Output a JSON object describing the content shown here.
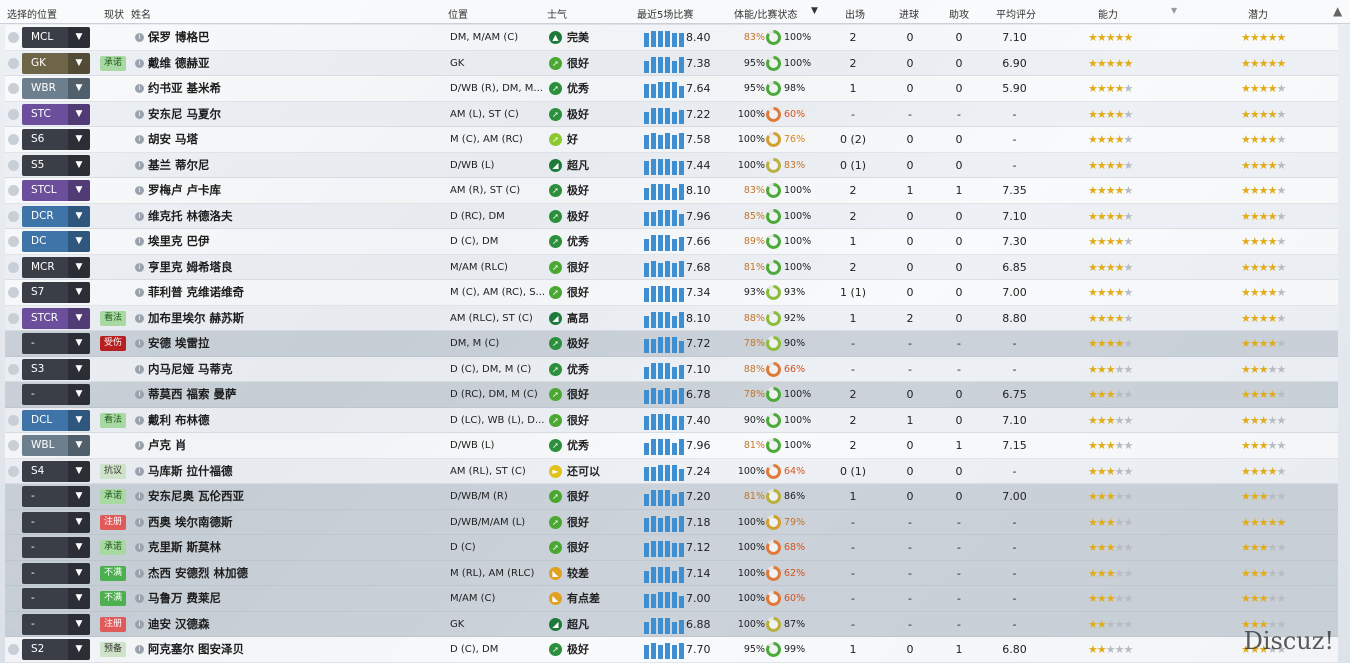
{
  "header": {
    "select_pos": "选择的位置",
    "status": "现状",
    "name": "姓名",
    "position": "位置",
    "morale": "士气",
    "last5": "最近5场比赛",
    "condition": "体能/比赛状态",
    "apps": "出场",
    "goals": "进球",
    "assists": "助攻",
    "avg_rating": "平均评分",
    "ability": "能力",
    "potential": "潜力"
  },
  "watermark": "Discuz!",
  "rows": [
    {
      "pos": "MCL",
      "pos_color": "#3a3f47",
      "status": "",
      "info": "i",
      "name": "保罗 博格巴",
      "position": "DM, M/AM (C)",
      "morale": "完美",
      "morale_color": "#1e7a3a",
      "morale_icon": "▲",
      "avg": "8.40",
      "cond": "83%",
      "cond_color": "#c0762a",
      "sharp": "100%",
      "sharp_color": "#222",
      "ring": "#4caa3a",
      "apps": "2",
      "goals": "0",
      "assists": "0",
      "rating": "7.10",
      "ab": 4.5,
      "pot": 4.5,
      "dim": false
    },
    {
      "pos": "GK",
      "pos_color": "#6e6447",
      "status": "承诺",
      "status_bg": "#a9d9a3",
      "status_fg": "#1f5a1b",
      "info": "i",
      "name": "戴维 德赫亚",
      "position": "GK",
      "morale": "很好",
      "morale_color": "#4aa832",
      "morale_icon": "➚",
      "avg": "7.38",
      "cond": "95%",
      "cond_color": "#222",
      "sharp": "100%",
      "sharp_color": "#222",
      "ring": "#4caa3a",
      "apps": "2",
      "goals": "0",
      "assists": "0",
      "rating": "6.90",
      "ab": 4.5,
      "pot": 4.5,
      "dim": false
    },
    {
      "pos": "WBR",
      "pos_color": "#6c7f8e",
      "status": "",
      "info": "i",
      "name": "约书亚 基米希",
      "position": "D/WB (R), DM, M...",
      "morale": "优秀",
      "morale_color": "#2b8f3c",
      "morale_icon": "➚",
      "avg": "7.64",
      "cond": "95%",
      "cond_color": "#222",
      "sharp": "98%",
      "sharp_color": "#222",
      "ring": "#4caa3a",
      "apps": "1",
      "goals": "0",
      "assists": "0",
      "rating": "5.90",
      "ab": 4,
      "pot": 4,
      "dim": false
    },
    {
      "pos": "STC",
      "pos_color": "#6b4f9c",
      "status": "",
      "info": "i",
      "name": "安东尼 马夏尔",
      "position": "AM (L), ST (C)",
      "morale": "极好",
      "morale_color": "#2b8f3c",
      "morale_icon": "➚",
      "avg": "7.22",
      "cond": "100%",
      "cond_color": "#222",
      "sharp": "60%",
      "sharp_color": "#d4531f",
      "ring": "#e07a3a",
      "apps": "-",
      "goals": "-",
      "assists": "-",
      "rating": "-",
      "ab": 4,
      "pot": 4,
      "dim": false
    },
    {
      "pos": "S6",
      "pos_color": "#3a3f47",
      "status": "",
      "info": "i",
      "name": "胡安 马塔",
      "position": "M (C), AM (RC)",
      "morale": "好",
      "morale_color": "#8dc830",
      "morale_icon": "➚",
      "avg": "7.58",
      "cond": "100%",
      "cond_color": "#222",
      "sharp": "76%",
      "sharp_color": "#d4871f",
      "ring": "#d0a030",
      "apps": "0 (2)",
      "goals": "0",
      "assists": "0",
      "rating": "-",
      "ab": 4,
      "pot": 4,
      "dim": false
    },
    {
      "pos": "S5",
      "pos_color": "#3a3f47",
      "status": "",
      "info": "i",
      "name": "基兰 蒂尔尼",
      "position": "D/WB (L)",
      "morale": "超凡",
      "morale_color": "#1e7a3a",
      "morale_icon": "◢",
      "avg": "7.44",
      "cond": "100%",
      "cond_color": "#222",
      "sharp": "83%",
      "sharp_color": "#c0762a",
      "ring": "#b8b040",
      "apps": "0 (1)",
      "goals": "0",
      "assists": "0",
      "rating": "-",
      "ab": 4,
      "pot": 4,
      "dim": false
    },
    {
      "pos": "STCL",
      "pos_color": "#6b4f9c",
      "status": "",
      "info": "i",
      "name": "罗梅卢 卢卡库",
      "position": "AM (R), ST (C)",
      "morale": "极好",
      "morale_color": "#2b8f3c",
      "morale_icon": "➚",
      "avg": "8.10",
      "cond": "83%",
      "cond_color": "#c0762a",
      "sharp": "100%",
      "sharp_color": "#222",
      "ring": "#4caa3a",
      "apps": "2",
      "goals": "1",
      "assists": "1",
      "rating": "7.35",
      "ab": 4,
      "pot": 4,
      "dim": false
    },
    {
      "pos": "DCR",
      "pos_color": "#3f74a8",
      "status": "",
      "info": "i",
      "name": "维克托 林德洛夫",
      "position": "D (RC), DM",
      "morale": "极好",
      "morale_color": "#2b8f3c",
      "morale_icon": "➚",
      "avg": "7.96",
      "cond": "85%",
      "cond_color": "#c0762a",
      "sharp": "100%",
      "sharp_color": "#222",
      "ring": "#4caa3a",
      "apps": "2",
      "goals": "0",
      "assists": "0",
      "rating": "7.10",
      "ab": 4,
      "pot": 4,
      "dim": false
    },
    {
      "pos": "DC",
      "pos_color": "#3f74a8",
      "status": "",
      "info": "i",
      "name": "埃里克 巴伊",
      "position": "D (C), DM",
      "morale": "优秀",
      "morale_color": "#2b8f3c",
      "morale_icon": "➚",
      "avg": "7.66",
      "cond": "89%",
      "cond_color": "#c0762a",
      "sharp": "100%",
      "sharp_color": "#222",
      "ring": "#4caa3a",
      "apps": "1",
      "goals": "0",
      "assists": "0",
      "rating": "7.30",
      "ab": 3.5,
      "pot": 3.5,
      "dim": false
    },
    {
      "pos": "MCR",
      "pos_color": "#3a3f47",
      "status": "",
      "info": "i",
      "name": "亨里克 姆希塔良",
      "position": "M/AM (RLC)",
      "morale": "很好",
      "morale_color": "#4aa832",
      "morale_icon": "➚",
      "avg": "7.68",
      "cond": "81%",
      "cond_color": "#c0762a",
      "sharp": "100%",
      "sharp_color": "#222",
      "ring": "#4caa3a",
      "apps": "2",
      "goals": "0",
      "assists": "0",
      "rating": "6.85",
      "ab": 3.5,
      "pot": 3.5,
      "dim": false
    },
    {
      "pos": "S7",
      "pos_color": "#3a3f47",
      "status": "",
      "info": "i",
      "name": "菲利普 克维诺维奇",
      "position": "M (C), AM (RC), S...",
      "morale": "很好",
      "morale_color": "#4aa832",
      "morale_icon": "➚",
      "avg": "7.34",
      "cond": "93%",
      "cond_color": "#222",
      "sharp": "93%",
      "sharp_color": "#222",
      "ring": "#8cbd3a",
      "apps": "1 (1)",
      "goals": "0",
      "assists": "0",
      "rating": "7.00",
      "ab": 3.5,
      "pot": 3.5,
      "dim": false
    },
    {
      "pos": "STCR",
      "pos_color": "#6b4f9c",
      "status": "看法",
      "status_bg": "#a9d9a3",
      "status_fg": "#1f5a1b",
      "info": "i",
      "name": "加布里埃尔 赫苏斯",
      "position": "AM (RLC), ST (C)",
      "morale": "高昂",
      "morale_color": "#1e7a3a",
      "morale_icon": "◢",
      "avg": "8.10",
      "cond": "88%",
      "cond_color": "#c0762a",
      "sharp": "92%",
      "sharp_color": "#222",
      "ring": "#8cbd3a",
      "apps": "1",
      "goals": "2",
      "assists": "0",
      "rating": "8.80",
      "ab": 3.5,
      "pot": 3.5,
      "dim": false
    },
    {
      "pos": "-",
      "pos_color": "#3a3f47",
      "status": "受伤",
      "status_bg": "#b81f1f",
      "status_fg": "#ffffff",
      "info": "i",
      "name": "安德 埃雷拉",
      "position": "DM, M (C)",
      "morale": "极好",
      "morale_color": "#2b8f3c",
      "morale_icon": "➚",
      "avg": "7.72",
      "cond": "78%",
      "cond_color": "#c0762a",
      "sharp": "90%",
      "sharp_color": "#222",
      "ring": "#8cbd3a",
      "apps": "-",
      "goals": "-",
      "assists": "-",
      "rating": "-",
      "ab": 3.5,
      "pot": 3.5,
      "dim": true
    },
    {
      "pos": "S3",
      "pos_color": "#3a3f47",
      "status": "",
      "info": "i",
      "name": "内马尼娅 马蒂克",
      "position": "D (C), DM, M (C)",
      "morale": "优秀",
      "morale_color": "#2b8f3c",
      "morale_icon": "➚",
      "avg": "7.10",
      "cond": "88%",
      "cond_color": "#c0762a",
      "sharp": "66%",
      "sharp_color": "#d4531f",
      "ring": "#e07a3a",
      "apps": "-",
      "goals": "-",
      "assists": "-",
      "rating": "-",
      "ab": 3,
      "pot": 3,
      "dim": false
    },
    {
      "pos": "-",
      "pos_color": "#3a3f47",
      "status": "",
      "info": "i",
      "name": "蒂莫西 福索 曼萨",
      "position": "D (RC), DM, M (C)",
      "morale": "很好",
      "morale_color": "#4aa832",
      "morale_icon": "➚",
      "avg": "6.78",
      "cond": "78%",
      "cond_color": "#c0762a",
      "sharp": "100%",
      "sharp_color": "#222",
      "ring": "#4caa3a",
      "apps": "2",
      "goals": "0",
      "assists": "0",
      "rating": "6.75",
      "ab": 3,
      "pot": 4,
      "dim": true
    },
    {
      "pos": "DCL",
      "pos_color": "#3f74a8",
      "status": "看法",
      "status_bg": "#a9d9a3",
      "status_fg": "#1f5a1b",
      "info": "i",
      "name": "戴利 布林德",
      "position": "D (LC), WB (L), D...",
      "morale": "很好",
      "morale_color": "#4aa832",
      "morale_icon": "➚",
      "avg": "7.40",
      "cond": "90%",
      "cond_color": "#222",
      "sharp": "100%",
      "sharp_color": "#222",
      "ring": "#4caa3a",
      "apps": "2",
      "goals": "1",
      "assists": "0",
      "rating": "7.10",
      "ab": 3,
      "pot": 3,
      "dim": false
    },
    {
      "pos": "WBL",
      "pos_color": "#6c7f8e",
      "status": "",
      "info": "i",
      "name": "卢克 肖",
      "position": "D/WB (L)",
      "morale": "优秀",
      "morale_color": "#2b8f3c",
      "morale_icon": "➚",
      "avg": "7.96",
      "cond": "81%",
      "cond_color": "#c0762a",
      "sharp": "100%",
      "sharp_color": "#222",
      "ring": "#4caa3a",
      "apps": "2",
      "goals": "0",
      "assists": "1",
      "rating": "7.15",
      "ab": 3,
      "pot": 3,
      "dim": false
    },
    {
      "pos": "S4",
      "pos_color": "#3a3f47",
      "status": "抗议",
      "status_bg": "#cfe3c9",
      "status_fg": "#333333",
      "info": "i",
      "name": "马库斯 拉什福德",
      "position": "AM (RL), ST (C)",
      "morale": "还可以",
      "morale_color": "#e2c21a",
      "morale_icon": "►",
      "avg": "7.24",
      "cond": "100%",
      "cond_color": "#222",
      "sharp": "64%",
      "sharp_color": "#d4531f",
      "ring": "#e07a3a",
      "apps": "0 (1)",
      "goals": "0",
      "assists": "0",
      "rating": "-",
      "ab": 3,
      "pot": 4,
      "dim": false
    },
    {
      "pos": "-",
      "pos_color": "#3a3f47",
      "status": "承诺",
      "status_bg": "#a9d9a3",
      "status_fg": "#1f5a1b",
      "info": "i",
      "name": "安东尼奥 瓦伦西亚",
      "position": "D/WB/M (R)",
      "morale": "很好",
      "morale_color": "#4aa832",
      "morale_icon": "➚",
      "avg": "7.20",
      "cond": "81%",
      "cond_color": "#c0762a",
      "sharp": "86%",
      "sharp_color": "#222",
      "ring": "#b8b040",
      "apps": "1",
      "goals": "0",
      "assists": "0",
      "rating": "7.00",
      "ab": 3,
      "pot": 3,
      "dim": true
    },
    {
      "pos": "-",
      "pos_color": "#3a3f47",
      "status": "注册",
      "status_bg": "#e05a5a",
      "status_fg": "#ffffff",
      "info": "i",
      "name": "西奥 埃尔南德斯",
      "position": "D/WB/M/AM (L)",
      "morale": "很好",
      "morale_color": "#4aa832",
      "morale_icon": "➚",
      "avg": "7.18",
      "cond": "100%",
      "cond_color": "#222",
      "sharp": "79%",
      "sharp_color": "#c0762a",
      "ring": "#d0a030",
      "apps": "-",
      "goals": "-",
      "assists": "-",
      "rating": "-",
      "ab": 2.5,
      "pot": 5,
      "dim": true
    },
    {
      "pos": "-",
      "pos_color": "#3a3f47",
      "status": "承诺",
      "status_bg": "#a9d9a3",
      "status_fg": "#1f5a1b",
      "info": "i",
      "name": "克里斯 斯莫林",
      "position": "D (C)",
      "morale": "很好",
      "morale_color": "#4aa832",
      "morale_icon": "➚",
      "avg": "7.12",
      "cond": "100%",
      "cond_color": "#222",
      "sharp": "68%",
      "sharp_color": "#d4531f",
      "ring": "#e07a3a",
      "apps": "-",
      "goals": "-",
      "assists": "-",
      "rating": "-",
      "ab": 2.5,
      "pot": 2.5,
      "dim": true
    },
    {
      "pos": "-",
      "pos_color": "#3a3f47",
      "status": "不满",
      "status_bg": "#4caf50",
      "status_fg": "#ffffff",
      "info": "i",
      "name": "杰西 安德烈 林加德",
      "position": "M (RL), AM (RLC)",
      "morale": "较差",
      "morale_color": "#e0a020",
      "morale_icon": "◣",
      "avg": "7.14",
      "cond": "100%",
      "cond_color": "#222",
      "sharp": "62%",
      "sharp_color": "#d4531f",
      "ring": "#e07a3a",
      "apps": "-",
      "goals": "-",
      "assists": "-",
      "rating": "-",
      "ab": 2.5,
      "pot": 2.5,
      "dim": true
    },
    {
      "pos": "-",
      "pos_color": "#3a3f47",
      "status": "不满",
      "status_bg": "#4caf50",
      "status_fg": "#ffffff",
      "info": "i",
      "name": "马鲁万 费莱尼",
      "position": "M/AM (C)",
      "morale": "有点差",
      "morale_color": "#e0a020",
      "morale_icon": "◣",
      "avg": "7.00",
      "cond": "100%",
      "cond_color": "#222",
      "sharp": "60%",
      "sharp_color": "#d4531f",
      "ring": "#e07a3a",
      "apps": "-",
      "goals": "-",
      "assists": "-",
      "rating": "-",
      "ab": 2.5,
      "pot": 2.5,
      "dim": true
    },
    {
      "pos": "-",
      "pos_color": "#3a3f47",
      "status": "注册",
      "status_bg": "#e05a5a",
      "status_fg": "#ffffff",
      "info": "i",
      "name": "迪安 汉德森",
      "position": "GK",
      "morale": "超凡",
      "morale_color": "#1e7a3a",
      "morale_icon": "◢",
      "avg": "6.88",
      "cond": "100%",
      "cond_color": "#222",
      "sharp": "87%",
      "sharp_color": "#222",
      "ring": "#b8b040",
      "apps": "-",
      "goals": "-",
      "assists": "-",
      "rating": "-",
      "ab": 2,
      "pot": 2.5,
      "dim": true
    },
    {
      "pos": "S2",
      "pos_color": "#3a3f47",
      "status": "预备",
      "status_bg": "#cfe3c9",
      "status_fg": "#333333",
      "info": "i",
      "name": "阿克塞尔 图安泽贝",
      "position": "D (C), DM",
      "morale": "极好",
      "morale_color": "#2b8f3c",
      "morale_icon": "➚",
      "avg": "7.70",
      "cond": "95%",
      "cond_color": "#222",
      "sharp": "99%",
      "sharp_color": "#222",
      "ring": "#4caa3a",
      "apps": "1",
      "goals": "0",
      "assists": "1",
      "rating": "6.80",
      "ab": 2,
      "pot": 3,
      "dim": false
    }
  ]
}
